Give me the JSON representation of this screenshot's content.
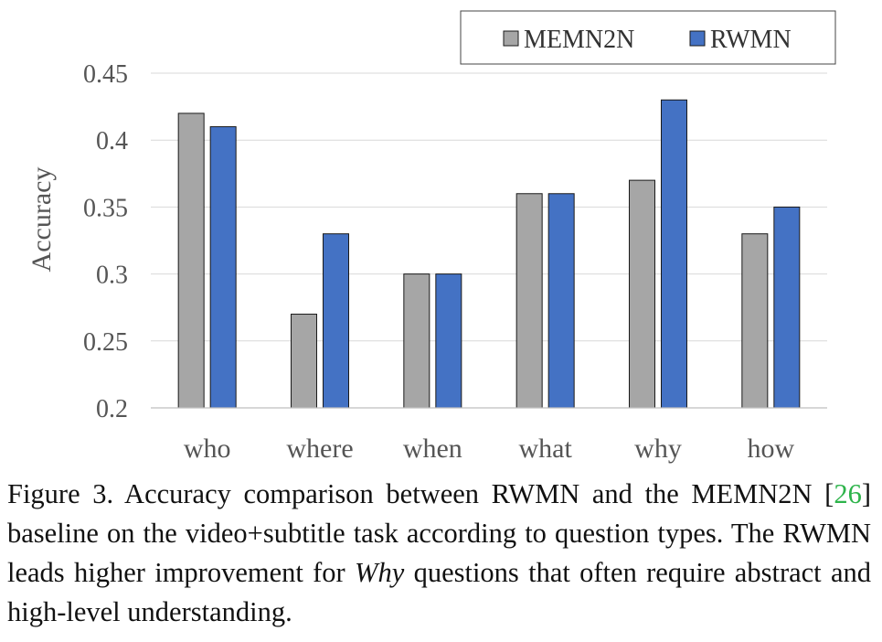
{
  "chart_data": {
    "type": "bar",
    "categories": [
      "who",
      "where",
      "when",
      "what",
      "why",
      "how"
    ],
    "series": [
      {
        "name": "MEMN2N",
        "color": "#a6a6a6",
        "values": [
          0.42,
          0.27,
          0.3,
          0.36,
          0.37,
          0.33
        ]
      },
      {
        "name": "RWMN",
        "color": "#4472c4",
        "values": [
          0.41,
          0.33,
          0.3,
          0.36,
          0.43,
          0.35
        ]
      }
    ],
    "ylabel": "Accuracy",
    "xlabel": "",
    "ylim": [
      0.2,
      0.45
    ],
    "yticks": [
      "0.2",
      "0.25",
      "0.3",
      "0.35",
      "0.4",
      "0.45"
    ],
    "grid": true,
    "legend_position": "top-right"
  },
  "caption": {
    "prefix": "Figure 3. Accuracy comparison between RWMN and the MEMN2N [",
    "ref": "26",
    "middle": "] baseline on the video+subtitle task according to question types.  The RWMN leads higher improvement for ",
    "emph": "Why",
    "suffix": " questions that often require abstract and high-level understanding."
  }
}
